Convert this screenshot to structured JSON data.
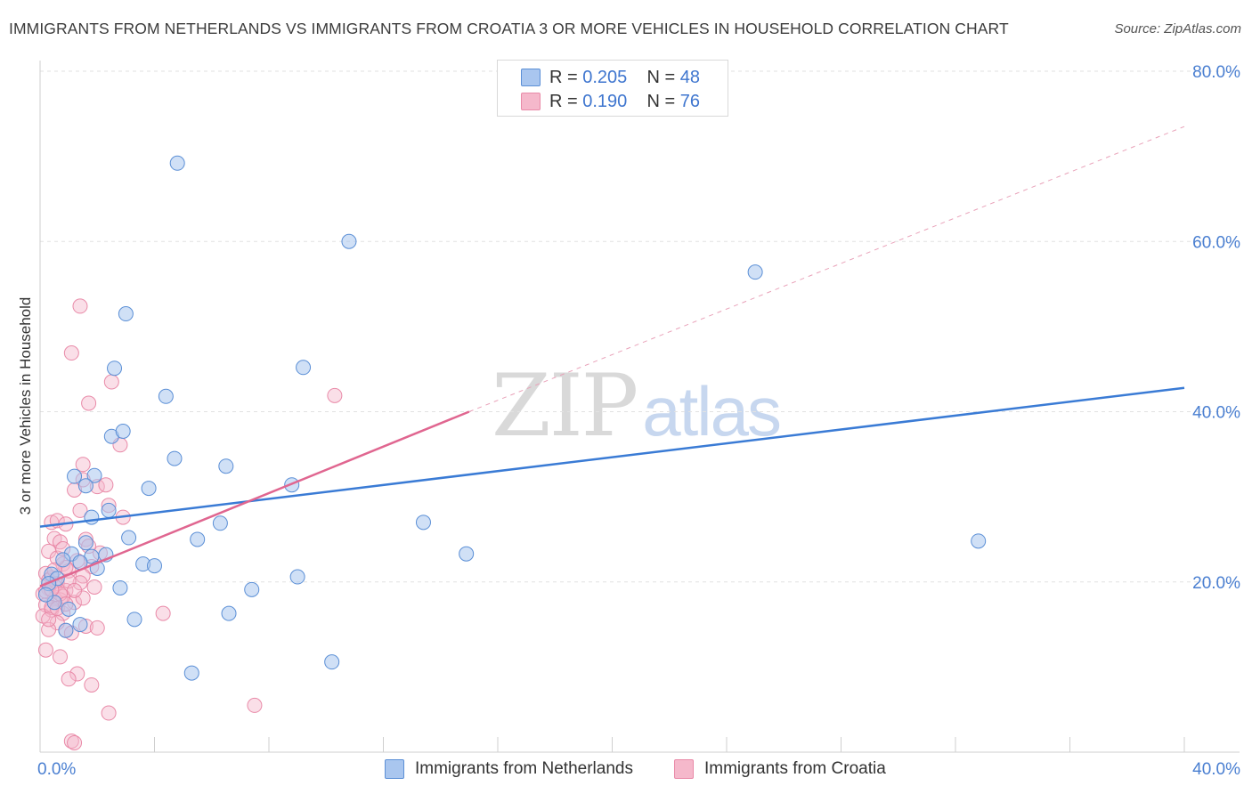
{
  "title": "IMMIGRANTS FROM NETHERLANDS VS IMMIGRANTS FROM CROATIA 3 OR MORE VEHICLES IN HOUSEHOLD CORRELATION CHART",
  "source": "Source: ZipAtlas.com",
  "watermark": {
    "zip": "ZIP",
    "atlas": "atlas"
  },
  "legend": {
    "r_label": "R =",
    "n_label": "N =",
    "rows": [
      {
        "r": "0.205",
        "n": "48",
        "color": "#a9c6ef"
      },
      {
        "r": "0.190",
        "n": "76",
        "color": "#f5b8cb"
      }
    ]
  },
  "bottom_legend": [
    {
      "label": "Immigrants from Netherlands",
      "color": "#a9c6ef"
    },
    {
      "label": "Immigrants from Croatia",
      "color": "#f5b8cb"
    }
  ],
  "colors": {
    "netherlands_fill": "#a9c6ef",
    "netherlands_stroke": "#5b8fd6",
    "netherlands_line": "#3a7bd5",
    "croatia_fill": "#f5b8cb",
    "croatia_stroke": "#e98aa8",
    "croatia_line": "#e06690",
    "axis_text": "#4a7fd1",
    "grid": "#e2e2e2"
  },
  "chart_data": {
    "type": "scatter",
    "title": "IMMIGRANTS FROM NETHERLANDS VS IMMIGRANTS FROM CROATIA 3 OR MORE VEHICLES IN HOUSEHOLD CORRELATION CHART",
    "xlabel": "",
    "ylabel": "3 or more Vehicles in Household",
    "xlim": [
      0,
      40
    ],
    "ylim": [
      0,
      80
    ],
    "x_tick_labels": [
      {
        "value": 0,
        "label": "0.0%"
      },
      {
        "value": 40,
        "label": "40.0%"
      }
    ],
    "y_tick_labels": [
      {
        "value": 20,
        "label": "20.0%"
      },
      {
        "value": 40,
        "label": "40.0%"
      },
      {
        "value": 60,
        "label": "60.0%"
      },
      {
        "value": 80,
        "label": "80.0%"
      }
    ],
    "x_minor_ticks": [
      0,
      4,
      8,
      12,
      16,
      20,
      24,
      28,
      32,
      36,
      40
    ],
    "series": [
      {
        "name": "Immigrants from Netherlands",
        "R": 0.205,
        "N": 48,
        "trend": {
          "x0": 0,
          "y0": 26.5,
          "x1": 40,
          "y1": 42.8,
          "style": "solid"
        },
        "points": [
          [
            4.8,
            69.2
          ],
          [
            10.8,
            60.0
          ],
          [
            3.0,
            51.5
          ],
          [
            25.0,
            56.4
          ],
          [
            2.6,
            45.1
          ],
          [
            9.2,
            45.2
          ],
          [
            4.4,
            41.8
          ],
          [
            2.5,
            37.1
          ],
          [
            2.9,
            37.7
          ],
          [
            4.7,
            34.5
          ],
          [
            6.5,
            33.6
          ],
          [
            1.2,
            32.4
          ],
          [
            1.9,
            32.5
          ],
          [
            1.6,
            31.3
          ],
          [
            3.8,
            31.0
          ],
          [
            8.8,
            31.4
          ],
          [
            1.8,
            27.6
          ],
          [
            2.4,
            28.4
          ],
          [
            6.3,
            26.9
          ],
          [
            13.4,
            27.0
          ],
          [
            3.1,
            25.2
          ],
          [
            5.5,
            25.0
          ],
          [
            1.6,
            24.6
          ],
          [
            1.1,
            23.3
          ],
          [
            1.8,
            23.0
          ],
          [
            2.3,
            23.2
          ],
          [
            0.8,
            22.6
          ],
          [
            1.4,
            22.3
          ],
          [
            2.0,
            21.6
          ],
          [
            3.6,
            22.1
          ],
          [
            4.0,
            21.9
          ],
          [
            0.4,
            20.9
          ],
          [
            0.6,
            20.4
          ],
          [
            9.0,
            20.6
          ],
          [
            0.3,
            19.8
          ],
          [
            2.8,
            19.3
          ],
          [
            7.4,
            19.1
          ],
          [
            14.9,
            23.3
          ],
          [
            32.8,
            24.8
          ],
          [
            0.5,
            17.6
          ],
          [
            6.6,
            16.3
          ],
          [
            3.3,
            15.6
          ],
          [
            1.4,
            15.0
          ],
          [
            0.9,
            14.3
          ],
          [
            5.3,
            9.3
          ],
          [
            10.2,
            10.6
          ],
          [
            0.2,
            18.5
          ],
          [
            1.0,
            16.8
          ]
        ]
      },
      {
        "name": "Immigrants from Croatia",
        "R": 0.19,
        "N": 76,
        "trend": {
          "x0": 0,
          "y0": 19.5,
          "x1": 15.0,
          "y1": 40.0,
          "style": "solid",
          "extend_to": [
            40,
            73.5
          ],
          "extend_style": "dashed"
        },
        "points": [
          [
            1.4,
            52.4
          ],
          [
            1.1,
            46.9
          ],
          [
            2.5,
            43.5
          ],
          [
            10.3,
            41.9
          ],
          [
            1.7,
            41.0
          ],
          [
            2.8,
            36.1
          ],
          [
            1.5,
            33.8
          ],
          [
            1.5,
            32.0
          ],
          [
            2.0,
            31.2
          ],
          [
            2.3,
            31.4
          ],
          [
            1.2,
            30.8
          ],
          [
            2.4,
            29.0
          ],
          [
            1.4,
            28.4
          ],
          [
            2.9,
            27.6
          ],
          [
            0.4,
            27.0
          ],
          [
            0.6,
            27.2
          ],
          [
            0.9,
            26.8
          ],
          [
            0.5,
            25.1
          ],
          [
            0.7,
            24.7
          ],
          [
            1.6,
            25.0
          ],
          [
            2.1,
            23.4
          ],
          [
            0.3,
            23.6
          ],
          [
            1.3,
            22.5
          ],
          [
            0.8,
            22.1
          ],
          [
            1.0,
            21.3
          ],
          [
            1.8,
            21.8
          ],
          [
            0.2,
            21.0
          ],
          [
            0.4,
            20.5
          ],
          [
            1.5,
            20.7
          ],
          [
            0.6,
            19.8
          ],
          [
            0.3,
            19.2
          ],
          [
            0.9,
            19.0
          ],
          [
            0.1,
            18.6
          ],
          [
            0.5,
            18.0
          ],
          [
            0.7,
            17.9
          ],
          [
            0.2,
            17.3
          ],
          [
            1.2,
            17.6
          ],
          [
            0.4,
            16.7
          ],
          [
            0.8,
            16.3
          ],
          [
            0.1,
            16.0
          ],
          [
            4.3,
            16.3
          ],
          [
            1.6,
            14.8
          ],
          [
            2.0,
            14.6
          ],
          [
            0.9,
            14.3
          ],
          [
            1.1,
            14.0
          ],
          [
            0.6,
            15.2
          ],
          [
            0.3,
            14.4
          ],
          [
            0.2,
            12.0
          ],
          [
            0.7,
            11.2
          ],
          [
            1.3,
            9.2
          ],
          [
            1.0,
            8.6
          ],
          [
            1.8,
            7.9
          ],
          [
            2.4,
            4.6
          ],
          [
            7.5,
            5.5
          ],
          [
            1.1,
            1.3
          ],
          [
            1.2,
            1.1
          ],
          [
            0.5,
            19.5
          ],
          [
            0.8,
            18.3
          ],
          [
            1.4,
            19.9
          ],
          [
            0.3,
            20.2
          ],
          [
            0.9,
            21.7
          ],
          [
            0.6,
            22.8
          ],
          [
            1.7,
            24.2
          ],
          [
            0.4,
            17.0
          ],
          [
            0.2,
            18.9
          ],
          [
            1.0,
            20.1
          ],
          [
            0.7,
            18.6
          ],
          [
            1.5,
            18.1
          ],
          [
            0.5,
            21.4
          ],
          [
            0.8,
            23.9
          ],
          [
            1.9,
            19.4
          ],
          [
            0.3,
            15.6
          ],
          [
            0.6,
            16.9
          ],
          [
            1.2,
            19.0
          ],
          [
            0.9,
            17.4
          ],
          [
            0.4,
            19.1
          ]
        ]
      }
    ]
  }
}
